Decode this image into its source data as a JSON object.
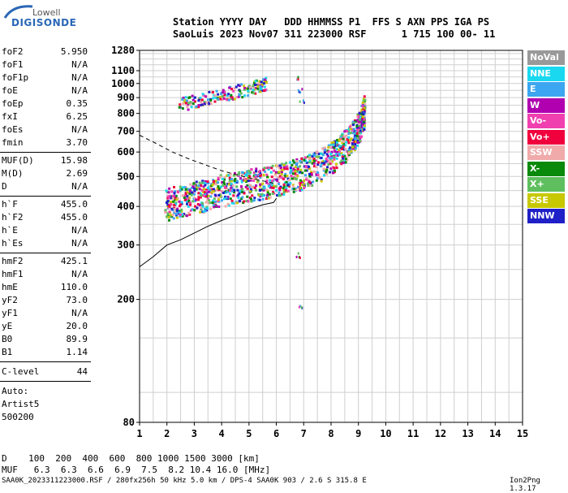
{
  "logo": {
    "company": "Lowell",
    "product": "DIGISONDE"
  },
  "header": {
    "line1": "Station YYYY DAY   DDD HHMMSS P1  FFS S AXN PPS IGA PS",
    "line2": "SaoLuis 2023 Nov07 311 223000 RSF      1 715 100 00- 11"
  },
  "params_freq": [
    {
      "k": "foF2",
      "v": "5.950"
    },
    {
      "k": "foF1",
      "v": "N/A"
    },
    {
      "k": "foF1p",
      "v": "N/A"
    },
    {
      "k": "foE",
      "v": "N/A"
    },
    {
      "k": "foEp",
      "v": "0.35"
    },
    {
      "k": "fxI",
      "v": "6.25"
    },
    {
      "k": "foEs",
      "v": "N/A"
    },
    {
      "k": "fmin",
      "v": "3.70"
    }
  ],
  "params_muf": [
    {
      "k": "MUF(D)",
      "v": "15.98"
    },
    {
      "k": "M(D)",
      "v": "2.69"
    },
    {
      "k": "D",
      "v": "N/A"
    }
  ],
  "params_virtual": [
    {
      "k": "h`F",
      "v": "455.0"
    },
    {
      "k": "h`F2",
      "v": "455.0"
    },
    {
      "k": "h`E",
      "v": "N/A"
    },
    {
      "k": "h`Es",
      "v": "N/A"
    }
  ],
  "params_profile": [
    {
      "k": "hmF2",
      "v": "425.1"
    },
    {
      "k": "hmF1",
      "v": "N/A"
    },
    {
      "k": "hmE",
      "v": "110.0"
    },
    {
      "k": "yF2",
      "v": "73.0"
    },
    {
      "k": "yF1",
      "v": "N/A"
    },
    {
      "k": "yE",
      "v": "20.0"
    },
    {
      "k": "B0",
      "v": "89.9"
    },
    {
      "k": "B1",
      "v": "1.14"
    }
  ],
  "clevel": {
    "k": "C-level",
    "v": "44"
  },
  "autoscale": [
    "Auto:",
    "Artist5",
    "500200"
  ],
  "legend": [
    {
      "label": "NoVal",
      "color": "#999999"
    },
    {
      "label": "NNE",
      "color": "#19d8f0"
    },
    {
      "label": "E",
      "color": "#3da6f0"
    },
    {
      "label": "W",
      "color": "#b000b0"
    },
    {
      "label": "Vo-",
      "color": "#f040b0"
    },
    {
      "label": "Vo+",
      "color": "#f0003c"
    },
    {
      "label": "SSW",
      "color": "#f0aaaa"
    },
    {
      "label": "X-",
      "color": "#0a8a0a"
    },
    {
      "label": "X+",
      "color": "#5fbf5f"
    },
    {
      "label": "SSE",
      "color": "#c8c800"
    },
    {
      "label": "NNW",
      "color": "#2020c8"
    }
  ],
  "bottom": {
    "d_row": "D    100  200  400  600  800 1000 1500 3000 [km]",
    "muf_row": "MUF   6.3  6.3  6.6  6.9  7.5  8.2 10.4 16.0 [MHz]"
  },
  "footer": "SAA0K_2023311223000.RSF / 280fx256h 50 kHz 5.0 km / DPS-4 SAA0K 903 / 2.6 S 315.8 E",
  "version": "Ion2Png 1.3.17",
  "chart_data": {
    "type": "scatter",
    "title": "",
    "xlabel": "",
    "ylabel": "",
    "xlim": [
      1,
      15
    ],
    "ylim": [
      80,
      1280
    ],
    "y_scale": "log",
    "grid": true,
    "legend_position": "right",
    "x_ticks": [
      1,
      2,
      3,
      4,
      5,
      6,
      7,
      8,
      9,
      10,
      11,
      12,
      13,
      14,
      15
    ],
    "y_ticks": [
      80,
      200,
      300,
      400,
      500,
      600,
      700,
      800,
      900,
      1000,
      1100,
      1280
    ],
    "traces": [
      {
        "name": "F2 O-trace",
        "points": [
          [
            1.9,
            410
          ],
          [
            2.3,
            418
          ],
          [
            2.8,
            428
          ],
          [
            3.3,
            440
          ],
          [
            3.8,
            452
          ],
          [
            4.3,
            462
          ],
          [
            4.8,
            472
          ],
          [
            5.3,
            480
          ],
          [
            5.8,
            488
          ],
          [
            6.3,
            500
          ],
          [
            6.8,
            515
          ],
          [
            7.3,
            535
          ],
          [
            7.8,
            565
          ],
          [
            8.2,
            600
          ],
          [
            8.6,
            650
          ],
          [
            8.9,
            705
          ],
          [
            9.1,
            770
          ],
          [
            9.2,
            830
          ]
        ]
      },
      {
        "name": "second hop",
        "points": [
          [
            2.4,
            860
          ],
          [
            3.0,
            880
          ],
          [
            3.6,
            910
          ],
          [
            4.2,
            935
          ],
          [
            4.8,
            960
          ],
          [
            5.3,
            990
          ],
          [
            5.6,
            1010
          ]
        ]
      },
      {
        "name": "vertical spread",
        "points": [
          [
            6.8,
            1050
          ],
          [
            6.85,
            960
          ],
          [
            6.9,
            880
          ],
          [
            6.8,
            280
          ],
          [
            6.85,
            190
          ],
          [
            6.9,
            470
          ]
        ]
      }
    ],
    "profile_curve": [
      [
        1.0,
        255
      ],
      [
        1.5,
        275
      ],
      [
        2.0,
        300
      ],
      [
        2.5,
        312
      ],
      [
        3.0,
        328
      ],
      [
        3.5,
        345
      ],
      [
        4.0,
        360
      ],
      [
        4.5,
        375
      ],
      [
        5.0,
        392
      ],
      [
        5.5,
        405
      ],
      [
        5.9,
        412
      ],
      [
        6.0,
        425
      ]
    ],
    "dashed_curve": [
      [
        1.0,
        680
      ],
      [
        1.6,
        640
      ],
      [
        2.2,
        600
      ],
      [
        2.8,
        570
      ],
      [
        3.4,
        545
      ],
      [
        4.0,
        522
      ],
      [
        4.6,
        505
      ],
      [
        5.2,
        490
      ],
      [
        5.8,
        478
      ],
      [
        6.0,
        470
      ]
    ]
  }
}
